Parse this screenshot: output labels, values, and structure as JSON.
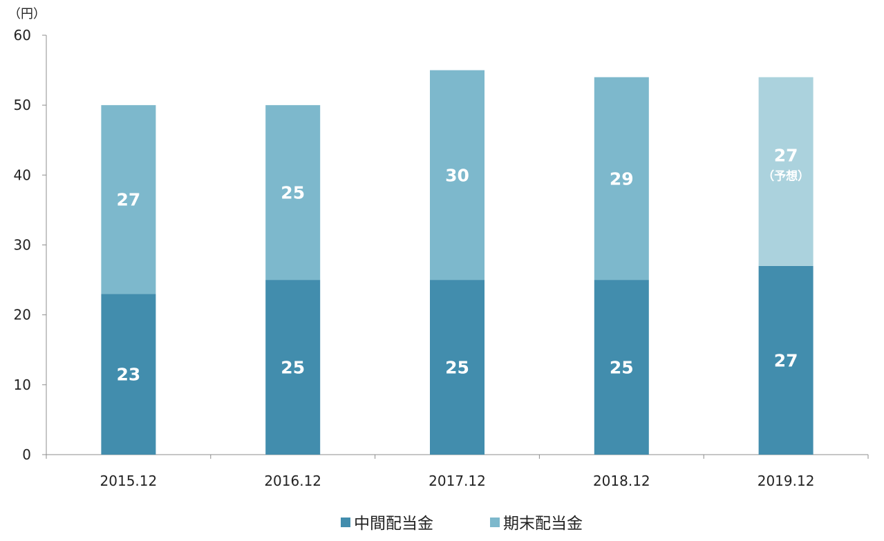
{
  "chart_data": {
    "type": "bar",
    "stacked": true,
    "unit_label": "（円）",
    "categories": [
      "2015.12",
      "2016.12",
      "2017.12",
      "2018.12",
      "2019.12"
    ],
    "series": [
      {
        "name": "中間配当金",
        "values": [
          23,
          25,
          25,
          25,
          27
        ],
        "color": "#428dad"
      },
      {
        "name": "期末配当金",
        "values": [
          27,
          25,
          30,
          29,
          27
        ],
        "color": "#7db8cc"
      }
    ],
    "forecast": {
      "category_index": 4,
      "series_index": 1,
      "color": "#abd2dd",
      "note": "（予想）"
    },
    "ylim": [
      0,
      60
    ],
    "yticks": [
      0,
      10,
      20,
      30,
      40,
      50,
      60
    ],
    "grid": false,
    "legend": "bottom"
  }
}
